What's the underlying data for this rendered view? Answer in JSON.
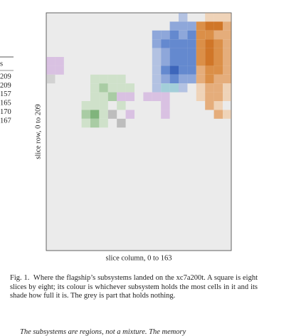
{
  "table": {
    "header": "s",
    "rows": [
      "209",
      "209",
      "157",
      "165",
      "170",
      "167"
    ]
  },
  "figure": {
    "y_label": "slice row, 0 to 209",
    "x_label": "slice column, 0 to 163",
    "caption_label": "Fig. 1.",
    "caption": "Where the flagship’s subsystems landed on the xc7a200t. A square is eight slices by eight; its colour is whichever subsystem holds the most cells in it and its shade how full it is. The grey is part that holds nothing."
  },
  "body": {
    "paragraph": "The subsystems are regions, not a mixture. The memory"
  }
}
